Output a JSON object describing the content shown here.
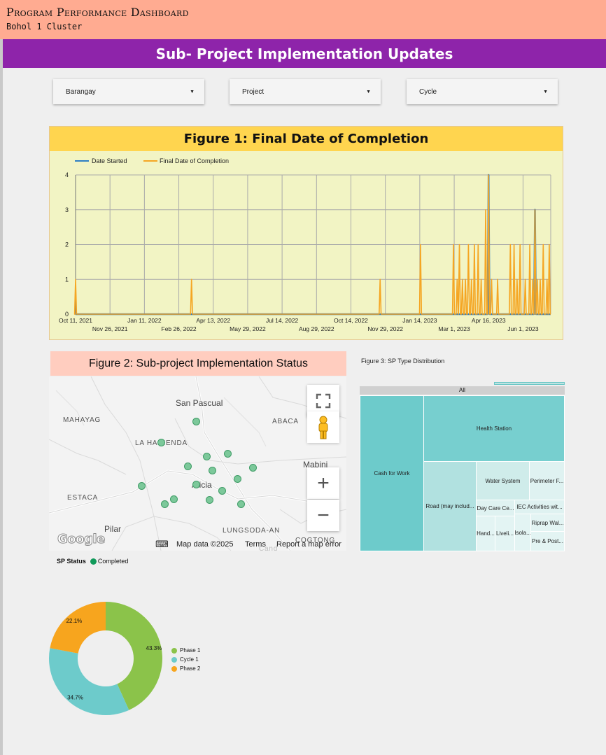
{
  "header": {
    "title": "Program Performance Dashboard",
    "subtitle": "Bohol 1 Cluster"
  },
  "banner": {
    "title": "Sub- Project Implementation Updates"
  },
  "filters": [
    {
      "label": "Barangay"
    },
    {
      "label": "Project"
    },
    {
      "label": "Cycle"
    }
  ],
  "figure1": {
    "title": "Figure 1: Final Date of Completion",
    "legend": [
      {
        "name": "Date Started",
        "color": "#2e7fc4"
      },
      {
        "name": "Final Date of Completion",
        "color": "#f5a623"
      }
    ],
    "y_ticks": [
      "0",
      "1",
      "2",
      "3",
      "4"
    ],
    "x_ticks_row1": [
      "Oct 11, 2021",
      "Jan 11, 2022",
      "Apr 13, 2022",
      "Jul 14, 2022",
      "Oct 14, 2022",
      "Jan 14, 2023",
      "Apr 16, 2023"
    ],
    "x_ticks_row2": [
      "Nov 26, 2021",
      "Feb 26, 2022",
      "May 29, 2022",
      "Aug 29, 2022",
      "Nov 29, 2022",
      "Mar 1, 2023",
      "Jun 1, 2023"
    ]
  },
  "chart_data": {
    "type": "line",
    "title": "Figure 1: Final Date of Completion",
    "xlabel": "",
    "ylabel": "",
    "ylim": [
      0,
      4
    ],
    "grid": true,
    "legend_placement": "top-left",
    "x_range": [
      "2021-10-11",
      "2023-07-08"
    ],
    "series": [
      {
        "name": "Final Date of Completion",
        "points": [
          [
            "2021-10-11",
            1
          ],
          [
            "2022-03-15",
            1
          ],
          [
            "2022-11-22",
            1
          ],
          [
            "2023-01-15",
            2
          ],
          [
            "2023-02-28",
            2
          ],
          [
            "2023-03-05",
            1
          ],
          [
            "2023-03-08",
            2
          ],
          [
            "2023-03-12",
            1
          ],
          [
            "2023-03-16",
            1
          ],
          [
            "2023-03-20",
            2
          ],
          [
            "2023-03-24",
            1
          ],
          [
            "2023-03-28",
            2
          ],
          [
            "2023-04-02",
            2
          ],
          [
            "2023-04-06",
            1
          ],
          [
            "2023-04-12",
            3
          ],
          [
            "2023-04-16",
            4
          ],
          [
            "2023-04-20",
            1
          ],
          [
            "2023-04-28",
            1
          ],
          [
            "2023-05-15",
            2
          ],
          [
            "2023-05-20",
            2
          ],
          [
            "2023-05-24",
            1
          ],
          [
            "2023-05-28",
            2
          ],
          [
            "2023-06-04",
            1
          ],
          [
            "2023-06-10",
            2
          ],
          [
            "2023-06-14",
            1
          ],
          [
            "2023-06-17",
            3
          ],
          [
            "2023-06-20",
            1
          ],
          [
            "2023-06-24",
            1
          ],
          [
            "2023-06-28",
            2
          ],
          [
            "2023-07-03",
            1
          ],
          [
            "2023-07-06",
            2
          ]
        ]
      },
      {
        "name": "Date Started",
        "points": [
          [
            "2023-04-16",
            4
          ],
          [
            "2023-06-17",
            3
          ]
        ]
      }
    ]
  },
  "figure2": {
    "title": "Figure 2: Sub-project Implementation Status",
    "places": [
      "San Pascual",
      "MAHAYAG",
      "ABACA",
      "LA HACIENDA",
      "Mabini",
      "ESTACA",
      "Alicia",
      "Pilar",
      "LUNGSODA-AN",
      "COGTONG",
      "Cand"
    ],
    "footer": {
      "map_data": "Map data ©2025",
      "terms": "Terms",
      "report": "Report a map error"
    },
    "logo_text": "Google",
    "buttons": {
      "fullscreen": "fullscreen-icon",
      "pegman": "pegman-icon",
      "zoom_in": "+",
      "zoom_out": "−"
    }
  },
  "figure3": {
    "title": "Figure 3: SP Type Distribution",
    "root_label": "All",
    "cells": [
      "Cash for Work",
      "Health Station",
      "Road (may includ...",
      "Water System",
      "Perimeter F...",
      "Day Care Ce...",
      "IEC Activities wit...",
      "Riprap Wal...",
      "Hand...",
      "Liveli...",
      "Isola...",
      "Pre & Post..."
    ],
    "colors": {
      "dark": "#6dcbcb",
      "mid": "#b1e1e0",
      "light": "#dff2f1"
    }
  },
  "sp_status": {
    "title": "SP Status",
    "legend": [
      {
        "name": "Completed",
        "color": "#109a5a"
      }
    ]
  },
  "pie": {
    "slices": [
      {
        "name": "Phase 1",
        "value": 43.3,
        "label": "43.3%",
        "color": "#8bc34a"
      },
      {
        "name": "Cycle 1",
        "value": 34.7,
        "label": "34.7%",
        "color": "#6dcbcb"
      },
      {
        "name": "Phase 2",
        "value": 22.1,
        "label": "22.1%",
        "color": "#f7a51e"
      }
    ]
  }
}
